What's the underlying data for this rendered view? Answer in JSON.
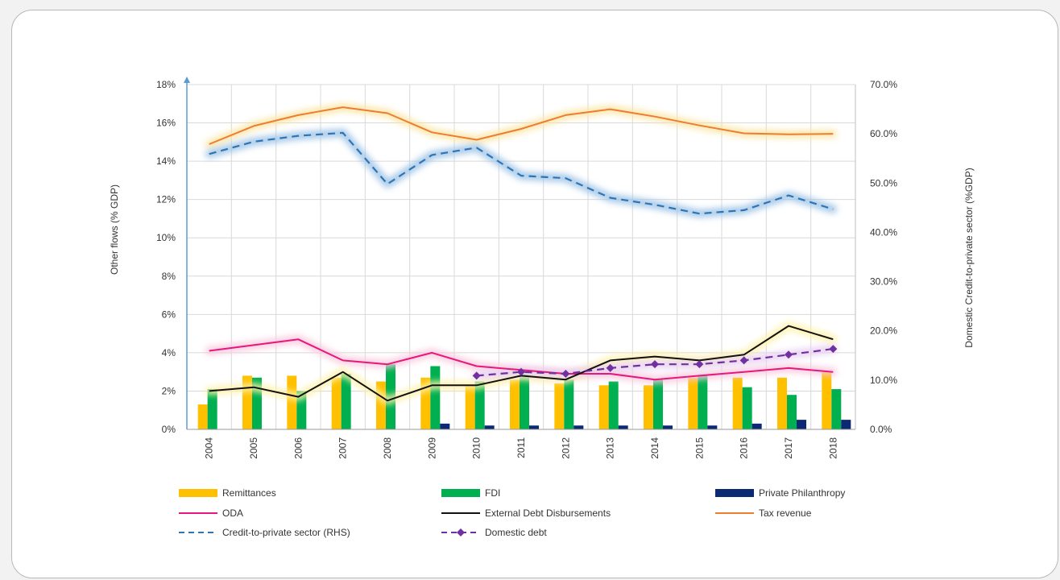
{
  "chart_data": {
    "type": "bar",
    "title": "",
    "x": [
      "2004",
      "2005",
      "2006",
      "2007",
      "2008",
      "2009",
      "2010",
      "2011",
      "2012",
      "2013",
      "2014",
      "2015",
      "2016",
      "2017",
      "2018"
    ],
    "ylabel_left": "Other flows (% GDP)",
    "ylabel_right": "Domestic Credit-to-private sector (%GDP)",
    "ylim_left": [
      0,
      18
    ],
    "ylim_right": [
      0,
      70
    ],
    "yticks_left": [
      "0%",
      "2%",
      "4%",
      "6%",
      "8%",
      "10%",
      "12%",
      "14%",
      "16%",
      "18%"
    ],
    "yticks_right": [
      "0.0%",
      "10.0%",
      "20.0%",
      "30.0%",
      "40.0%",
      "50.0%",
      "60.0%",
      "70.0%"
    ],
    "grid": true,
    "legend_position": "bottom",
    "series": [
      {
        "name": "Remittances",
        "type": "bar",
        "axis": "left",
        "color": "#ffc000",
        "values": [
          1.3,
          2.8,
          2.8,
          2.7,
          2.5,
          2.7,
          2.3,
          2.6,
          2.4,
          2.3,
          2.3,
          2.7,
          2.7,
          2.7,
          3.0
        ]
      },
      {
        "name": "FDI",
        "type": "bar",
        "axis": "left",
        "color": "#00b050",
        "values": [
          2.1,
          2.7,
          2.0,
          2.9,
          3.4,
          3.3,
          2.5,
          2.9,
          2.6,
          2.5,
          2.6,
          2.8,
          2.2,
          1.8,
          2.1
        ]
      },
      {
        "name": "Private Philanthropy",
        "type": "bar",
        "axis": "left",
        "color": "#0c2a74",
        "values": [
          0,
          0,
          0,
          0,
          0,
          0.3,
          0.2,
          0.2,
          0.2,
          0.2,
          0.2,
          0.2,
          0.3,
          0.5,
          0.5
        ]
      },
      {
        "name": "ODA",
        "type": "line",
        "axis": "left",
        "color": "#e8177d",
        "values": [
          4.1,
          4.4,
          4.7,
          3.6,
          3.4,
          4.0,
          3.3,
          3.1,
          2.9,
          2.9,
          2.6,
          2.8,
          3.0,
          3.2,
          3.0
        ]
      },
      {
        "name": "External Debt Disbursements",
        "type": "line",
        "axis": "left",
        "color": "#111111",
        "values": [
          2.0,
          2.2,
          1.7,
          3.0,
          1.5,
          2.3,
          2.3,
          2.8,
          2.6,
          3.6,
          3.8,
          3.6,
          3.9,
          5.4,
          4.7
        ]
      },
      {
        "name": "Tax revenue",
        "type": "line",
        "axis": "right",
        "color": "#ed7d31",
        "values": [
          57.9,
          61.6,
          63.8,
          65.4,
          64.2,
          60.3,
          58.8,
          61.0,
          63.8,
          65.0,
          63.5,
          61.7,
          60.1,
          59.9,
          60.0
        ]
      },
      {
        "name": "Credit-to-private sector (RHS)",
        "type": "line",
        "dashed": true,
        "axis": "right",
        "color": "#2e75b6",
        "values": [
          55.9,
          58.4,
          59.6,
          60.2,
          49.8,
          55.7,
          57.2,
          51.5,
          51.0,
          47.0,
          45.6,
          43.8,
          44.5,
          47.5,
          44.7
        ]
      },
      {
        "name": "Domestic debt",
        "type": "line",
        "dashed": true,
        "markers": true,
        "axis": "left",
        "color": "#7030a0",
        "values": [
          null,
          null,
          null,
          null,
          null,
          null,
          2.8,
          3.0,
          2.9,
          3.2,
          3.4,
          3.4,
          3.6,
          3.9,
          4.2
        ]
      }
    ]
  },
  "legend": [
    {
      "label": "Remittances",
      "kind": "bar",
      "color": "#ffc000"
    },
    {
      "label": "FDI",
      "kind": "bar",
      "color": "#00b050"
    },
    {
      "label": "Private Philanthropy",
      "kind": "bar",
      "color": "#0c2a74"
    },
    {
      "label": "ODA",
      "kind": "line",
      "color": "#e8177d"
    },
    {
      "label": "External Debt Disbursements",
      "kind": "line",
      "color": "#111111"
    },
    {
      "label": "Tax revenue",
      "kind": "line",
      "color": "#ed7d31"
    },
    {
      "label": "Credit-to-private sector (RHS)",
      "kind": "dash",
      "color": "#2e75b6"
    },
    {
      "label": "Domestic debt",
      "kind": "dashmarker",
      "color": "#7030a0"
    }
  ]
}
